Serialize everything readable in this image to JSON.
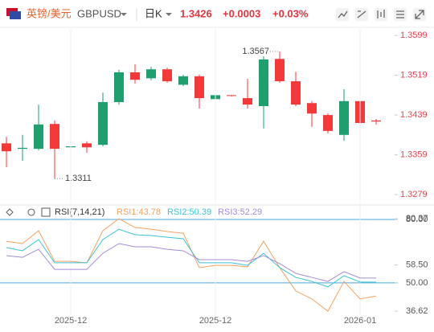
{
  "header": {
    "pair": "英镑/美元",
    "symbol": "GBPUSD",
    "period": "日K",
    "price": "1.3426",
    "change": "+0.0003",
    "change_pct": "+0.03%"
  },
  "chart_data": [
    {
      "type": "candlestick",
      "open": [
        1.3382,
        1.3371,
        1.3371,
        1.3421,
        1.3374,
        1.3382,
        1.3379,
        1.3465,
        1.3525,
        1.3513,
        1.3531,
        1.35,
        1.3517,
        1.3471,
        1.3479,
        1.3473,
        1.3457,
        1.3552,
        1.3507,
        1.3463,
        1.3439,
        1.3399,
        1.3467,
        1.3428
      ],
      "high": [
        1.3395,
        1.3399,
        1.346,
        1.3428,
        1.3447,
        1.3386,
        1.3484,
        1.353,
        1.3541,
        1.3536,
        1.3534,
        1.352,
        1.352,
        1.3489,
        1.3479,
        1.3512,
        1.3557,
        1.3567,
        1.3526,
        1.3467,
        1.3442,
        1.3491,
        1.3499,
        1.3431
      ],
      "low": [
        1.3334,
        1.3347,
        1.3368,
        1.3311,
        1.337,
        1.3363,
        1.3376,
        1.346,
        1.3502,
        1.3509,
        1.3504,
        1.3497,
        1.3452,
        1.3399,
        1.3476,
        1.3452,
        1.3412,
        1.3504,
        1.3457,
        1.3415,
        1.3402,
        1.3387,
        1.3418,
        1.342
      ],
      "close": [
        1.3366,
        1.3373,
        1.342,
        1.3371,
        1.3376,
        1.3374,
        1.3465,
        1.3525,
        1.351,
        1.3531,
        1.3507,
        1.3517,
        1.3473,
        1.3479,
        1.3478,
        1.346,
        1.3551,
        1.3507,
        1.346,
        1.3442,
        1.3407,
        1.3467,
        1.3423,
        1.3426
      ],
      "up_color": "#1f9e6e",
      "down_color": "#f23a3a",
      "tick_color": "#e0474f",
      "ylim": [
        1.3266,
        1.3622
      ],
      "yticks": [
        1.3599,
        1.3519,
        1.3439,
        1.3359,
        1.3279
      ]
    },
    {
      "type": "line",
      "title": "RSI(7,14,21)",
      "categories": [
        null,
        null,
        null,
        null,
        "2025-12",
        null,
        null,
        null,
        null,
        null,
        null,
        null,
        null,
        "2025-12",
        null,
        null,
        null,
        null,
        null,
        null,
        null,
        null,
        "2026-01",
        null
      ],
      "series": [
        {
          "name": "RSI1:43.78",
          "color": "#f4a261",
          "values": [
            69.7,
            68.6,
            74.7,
            60.2,
            60.2,
            59.5,
            74.7,
            80.37,
            76.2,
            75.4,
            74.3,
            73.5,
            57.2,
            58.3,
            58.3,
            57.6,
            69.7,
            57.2,
            46.2,
            42.4,
            36.62,
            50.7,
            42.4,
            43.78
          ]
        },
        {
          "name": "RSI2:50.39",
          "color": "#3cc3d6",
          "values": [
            66.7,
            65.2,
            70.5,
            59.5,
            59.5,
            59.5,
            70.5,
            75.4,
            72.8,
            72.4,
            71.6,
            70.9,
            59.5,
            59.5,
            59.5,
            58.3,
            64.0,
            57.2,
            52.6,
            50.7,
            48.1,
            53.4,
            50.4,
            50.39
          ]
        },
        {
          "name": "RSI3:52.29",
          "color": "#a68bd9",
          "values": [
            62.9,
            62.1,
            65.9,
            56.4,
            56.4,
            56.4,
            64.0,
            68.6,
            67.1,
            67.1,
            65.9,
            65.2,
            61.0,
            61.0,
            61.0,
            60.2,
            62.9,
            59.1,
            54.5,
            52.6,
            50.7,
            55.3,
            52.3,
            52.29
          ]
        }
      ],
      "ylim": [
        31.7,
        84.2
      ],
      "yticks": [
        {
          "value": 80,
          "label": "80.00"
        },
        80.37,
        {
          "value": 58.5,
          "label": "58.50"
        },
        {
          "value": 50,
          "label": "50.00"
        },
        36.62
      ],
      "reference_lines": [
        80,
        50
      ],
      "reference_color": "#4aa8e0"
    }
  ]
}
